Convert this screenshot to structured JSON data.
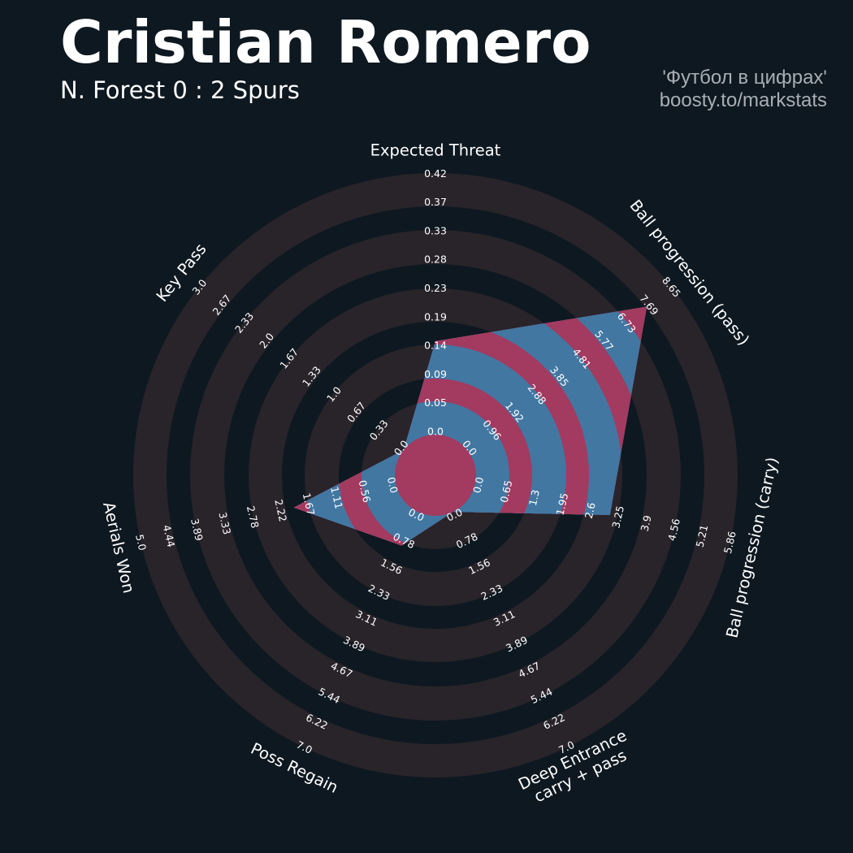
{
  "header": {
    "title": "Cristian Romero",
    "subtitle": "N. Forest 0 : 2 Spurs",
    "credit_line1": "'Футбол в цифрах'",
    "credit_line2": "boosty.to/markstats"
  },
  "chart_data": {
    "type": "radar",
    "title": "Cristian Romero",
    "subtitle": "N. Forest 0 : 2 Spurs",
    "params": [
      {
        "label": [
          "Expected Threat"
        ],
        "value": 0.15,
        "min": 0,
        "max": 0.42,
        "ticks": [
          "0.0",
          "0.05",
          "0.09",
          "0.14",
          "0.19",
          "0.23",
          "0.28",
          "0.33",
          "0.37",
          "0.42"
        ]
      },
      {
        "label": [
          "Ball progression (pass)"
        ],
        "value": 7.6,
        "min": 0,
        "max": 8.65,
        "ticks": [
          "0.0",
          "0.96",
          "1.92",
          "2.88",
          "3.85",
          "4.81",
          "5.77",
          "6.73",
          "7.69",
          "8.65"
        ]
      },
      {
        "label": [
          "Ball progression (carry)"
        ],
        "value": 3.1,
        "min": 0,
        "max": 5.86,
        "ticks": [
          "0.0",
          "0.65",
          "1.3",
          "1.95",
          "2.6",
          "3.25",
          "3.9",
          "4.56",
          "5.21",
          "5.86"
        ]
      },
      {
        "label": [
          "Deep Entrance",
          "carry + pass"
        ],
        "value": 0.0,
        "min": 0,
        "max": 7.0,
        "ticks": [
          "0.0",
          "0.78",
          "1.56",
          "2.33",
          "3.11",
          "3.89",
          "4.67",
          "5.44",
          "6.22",
          "7.0"
        ]
      },
      {
        "label": [
          "Poss Regain"
        ],
        "value": 1.0,
        "min": 0,
        "max": 7.0,
        "ticks": [
          "0.0",
          "0.78",
          "1.56",
          "2.33",
          "3.11",
          "3.89",
          "4.67",
          "5.44",
          "6.22",
          "7.0"
        ]
      },
      {
        "label": [
          "Aerials Won"
        ],
        "value": 2.0,
        "min": 0,
        "max": 5.0,
        "ticks": [
          "0.0",
          "0.56",
          "1.11",
          "1.67",
          "2.22",
          "2.78",
          "3.33",
          "3.89",
          "4.44",
          "5.0"
        ]
      },
      {
        "label": [
          "Key Pass"
        ],
        "value": 0.0,
        "min": 0,
        "max": 3.0,
        "ticks": [
          "0.0",
          "0.33",
          "0.67",
          "1.0",
          "1.33",
          "1.67",
          "2.0",
          "2.33",
          "2.67",
          "3.0"
        ]
      }
    ],
    "colors": {
      "background": "#0e1820",
      "ring": "#28242a",
      "polygon_ring": "#4277a2",
      "polygon_gap": "#a33a60",
      "text": "#ffffff",
      "credit_text": "#a8aeb4"
    }
  }
}
